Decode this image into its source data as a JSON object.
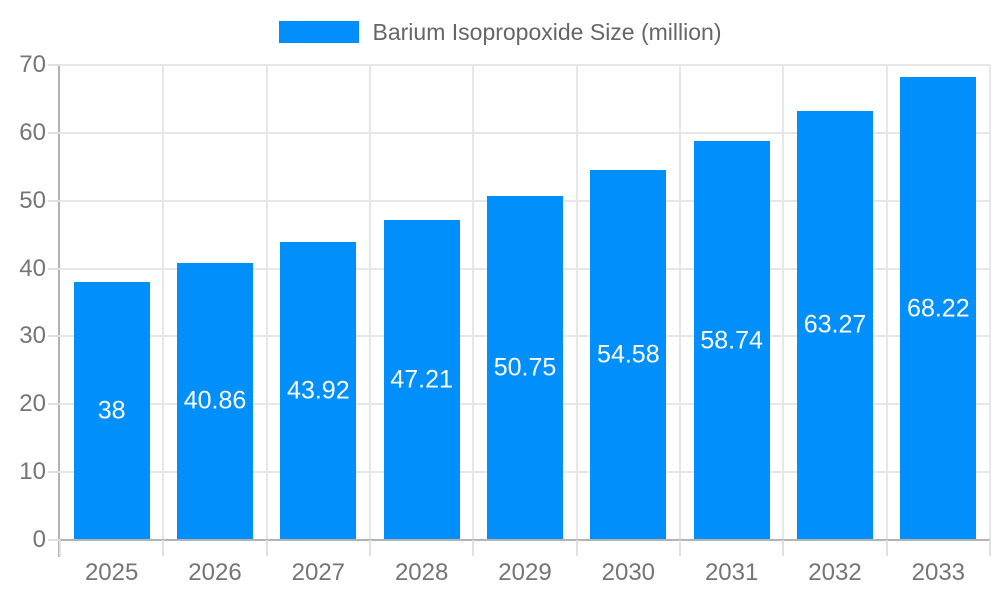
{
  "legend": {
    "label": "Barium Isopropoxide Size (million)"
  },
  "chart_data": {
    "type": "bar",
    "title": "",
    "xlabel": "",
    "ylabel": "",
    "categories": [
      "2025",
      "2026",
      "2027",
      "2028",
      "2029",
      "2030",
      "2031",
      "2032",
      "2033"
    ],
    "series": [
      {
        "name": "Barium Isopropoxide Size (million)",
        "values": [
          38,
          40.86,
          43.92,
          47.21,
          50.75,
          54.58,
          58.74,
          63.27,
          68.22
        ]
      }
    ],
    "data_labels": [
      "38",
      "40.86",
      "43.92",
      "47.21",
      "50.75",
      "54.58",
      "58.74",
      "63.27",
      "68.22"
    ],
    "ylim": [
      0,
      70
    ],
    "yticks": [
      0,
      10,
      20,
      30,
      40,
      50,
      60,
      70
    ],
    "grid": true,
    "legend_position": "top",
    "colors": {
      "bar": "#008FFB",
      "data_label": "#FFFFFF",
      "axis_label": "#757575",
      "legend_text": "#666666",
      "gridline": "#E7E7E7",
      "tick": "#E0E0E0",
      "axis_line": "#B3B3B3",
      "background": "#FFFFFF"
    }
  }
}
